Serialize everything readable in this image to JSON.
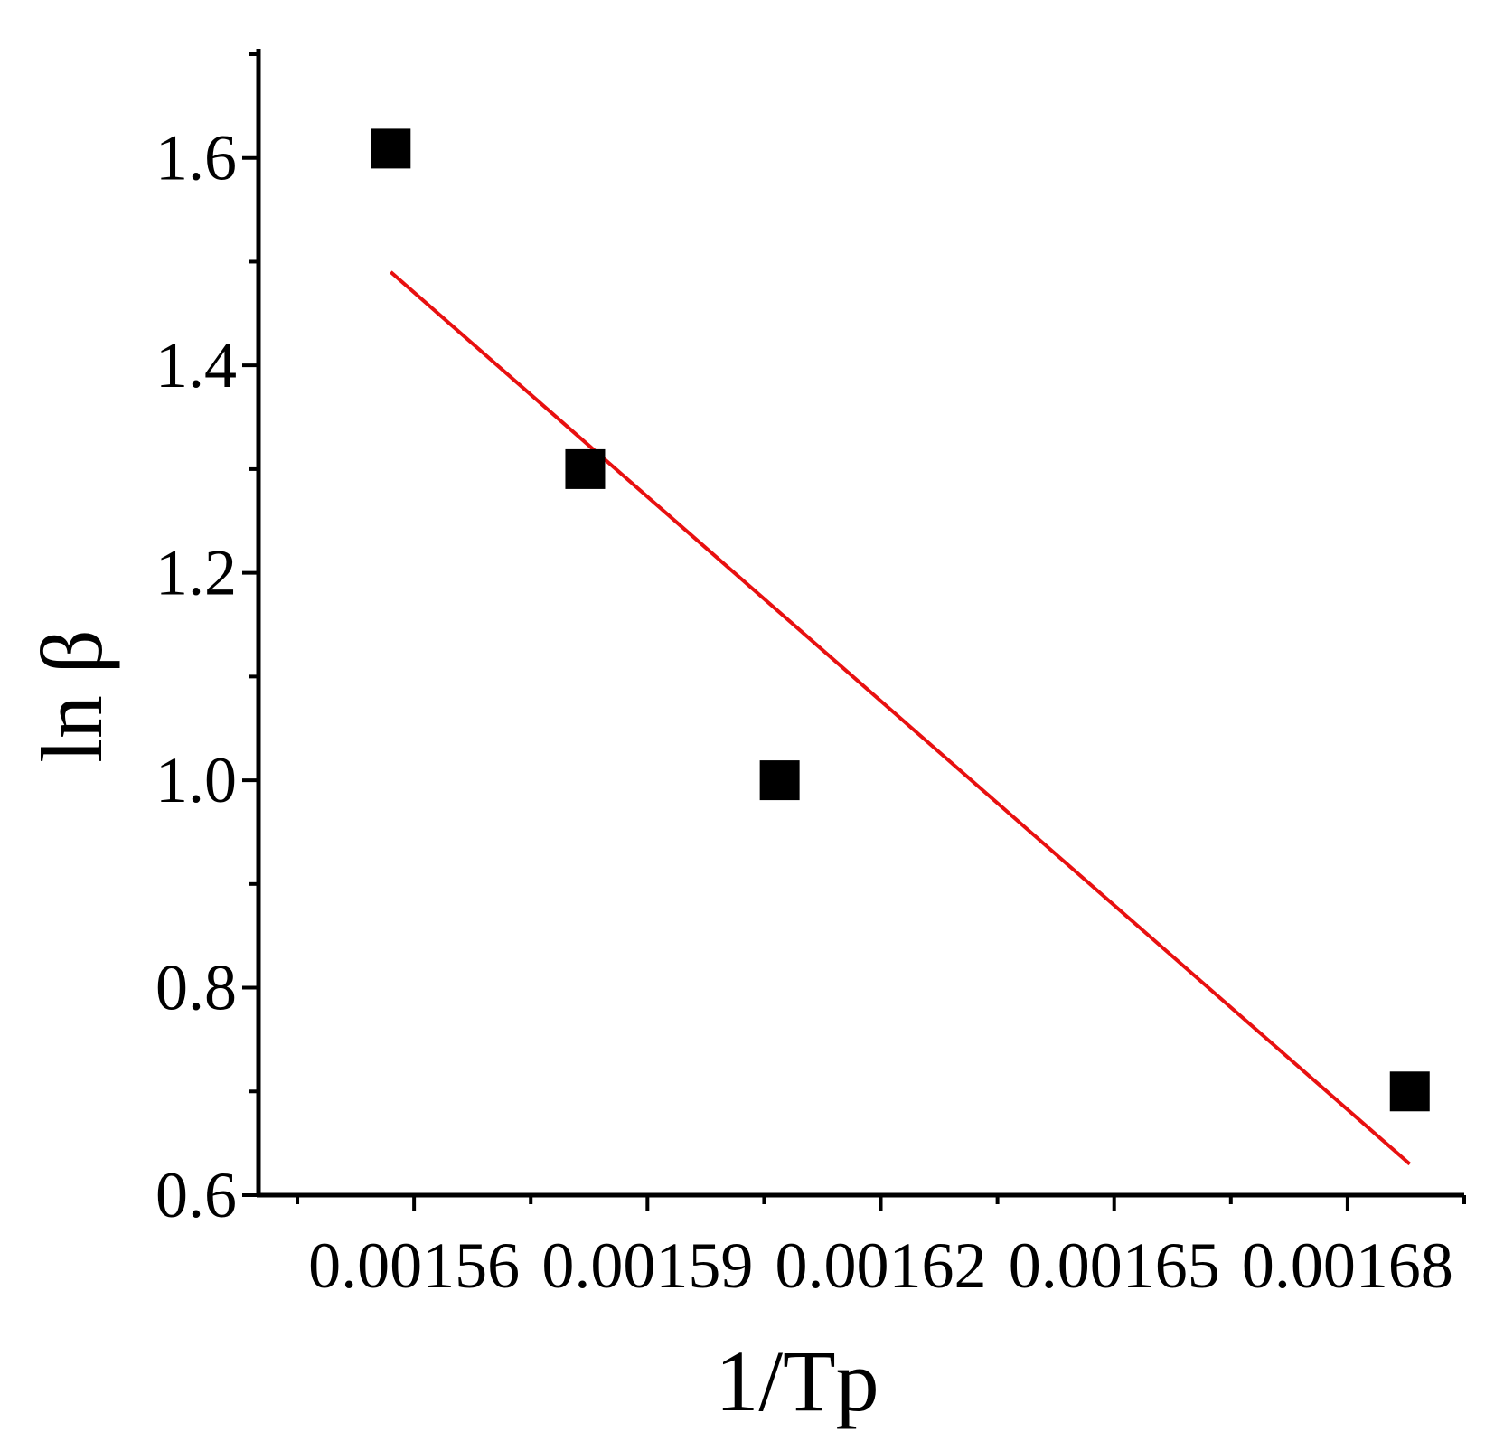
{
  "chart_data": {
    "type": "scatter",
    "title": "",
    "xlabel": "1/Tp",
    "ylabel": "ln β",
    "xlim": [
      0.00154,
      0.001695
    ],
    "ylim": [
      0.6,
      1.7
    ],
    "x_ticks_major": [
      0.00156,
      0.00159,
      0.00162,
      0.00165,
      0.00168
    ],
    "x_tick_labels": [
      "0.00156",
      "0.00159",
      "0.00162",
      "0.00165",
      "0.00168"
    ],
    "x_ticks_minor": [
      0.001545,
      0.001575,
      0.001605,
      0.001635,
      0.001665,
      0.001695
    ],
    "y_ticks_major": [
      0.6,
      0.8,
      1.0,
      1.2,
      1.4,
      1.6
    ],
    "y_tick_labels": [
      "0.6",
      "0.8",
      "1.0",
      "1.2",
      "1.4",
      "1.6"
    ],
    "y_ticks_minor": [
      0.7,
      0.9,
      1.1,
      1.3,
      1.5,
      1.7
    ],
    "grid": false,
    "legend": "none",
    "series": [
      {
        "kind": "points",
        "marker": "square",
        "color": "#000000",
        "x": [
          0.001557,
          0.001582,
          0.001607,
          0.001688
        ],
        "y": [
          1.609,
          1.3,
          1.0,
          0.7
        ]
      },
      {
        "kind": "fit-line",
        "color": "#e81010",
        "x": [
          0.001557,
          0.001688
        ],
        "y": [
          1.49,
          0.63
        ]
      }
    ]
  }
}
